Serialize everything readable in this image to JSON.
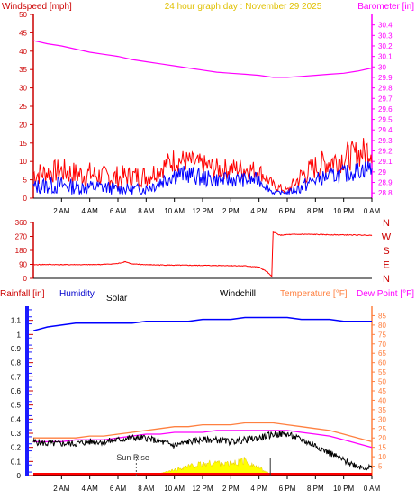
{
  "header": {
    "left_label": "Windspeed [mph]",
    "center_label": "24 hour graph day : November 29 2025",
    "right_label": "Barometer [in]"
  },
  "colors": {
    "wind": "#ff0000",
    "gust": "#0000ff",
    "barometer": "#ff00ff",
    "direction": "#ff0000",
    "rain": "#ff0000",
    "humidity": "#0000ff",
    "solar": "#ffff00",
    "windchill": "#000000",
    "temperature": "#ff8040",
    "dewpoint": "#ff00ff",
    "accent_red": "#cc0000",
    "title_yellow": "#e0c000"
  },
  "x_ticks": [
    "2 AM",
    "4 AM",
    "6 AM",
    "8 AM",
    "10 AM",
    "12 PM",
    "2 PM",
    "4 PM",
    "6 PM",
    "8 PM",
    "10 PM",
    "0 AM"
  ],
  "chart_data": [
    {
      "type": "line",
      "title": "24 hour graph day : November 29 2025",
      "ylabel": "Windspeed [mph]",
      "y2label": "Barometer [in]",
      "ylim": [
        0,
        50
      ],
      "y2lim": [
        28.75,
        30.5
      ],
      "yticks": [
        "0",
        "5",
        "10",
        "15",
        "20",
        "25",
        "30",
        "35",
        "40",
        "45",
        "50"
      ],
      "y2ticks": [
        "28.8",
        "28.9",
        "29",
        "29.1",
        "29.2",
        "29.3",
        "29.4",
        "29.5",
        "29.6",
        "29.7",
        "29.8",
        "29.9",
        "30",
        "30.1",
        "30.2",
        "30.3",
        "30.4"
      ],
      "x": [
        0,
        1,
        2,
        3,
        4,
        5,
        6,
        7,
        8,
        9,
        10,
        11,
        12,
        13,
        14,
        15,
        16,
        17,
        18,
        19,
        20,
        21,
        22,
        23,
        24
      ],
      "series": [
        {
          "role": "wind_hi",
          "values": [
            10,
            10,
            11,
            10,
            10,
            9,
            9,
            9,
            9,
            11,
            14,
            13,
            12,
            11,
            11,
            11,
            10,
            5,
            3,
            9,
            12,
            14,
            15,
            16,
            18
          ]
        },
        {
          "role": "wind_lo",
          "values": [
            3,
            4,
            4,
            3,
            3,
            3,
            2,
            3,
            3,
            5,
            7,
            7,
            6,
            5,
            5,
            5,
            5,
            2,
            1,
            3,
            5,
            6,
            7,
            8,
            9
          ]
        },
        {
          "role": "gust_hi",
          "values": [
            5,
            6,
            6,
            5,
            5,
            5,
            4,
            4,
            4,
            7,
            9,
            9,
            8,
            7,
            7,
            7,
            7,
            2,
            2,
            5,
            7,
            8,
            9,
            10,
            11
          ]
        },
        {
          "role": "gust_lo",
          "values": [
            1,
            1,
            1,
            1,
            1,
            1,
            1,
            1,
            1,
            2,
            4,
            4,
            3,
            3,
            3,
            3,
            3,
            1,
            1,
            1,
            3,
            4,
            4,
            5,
            6
          ]
        },
        {
          "role": "barometer",
          "values": [
            30.25,
            30.22,
            30.2,
            30.17,
            30.14,
            30.12,
            30.1,
            30.07,
            30.05,
            30.03,
            30.01,
            29.99,
            29.97,
            29.95,
            29.94,
            29.93,
            29.92,
            29.9,
            29.9,
            29.91,
            29.92,
            29.93,
            29.94,
            29.96,
            29.99
          ]
        }
      ]
    },
    {
      "type": "line",
      "ylim": [
        0,
        360
      ],
      "yticks": [
        "0",
        "90",
        "180",
        "270",
        "360"
      ],
      "compass": [
        "N",
        "W",
        "S",
        "E",
        "N"
      ],
      "x": [
        0,
        1,
        2,
        3,
        4,
        5,
        6,
        6.5,
        7,
        8,
        9,
        10,
        11,
        12,
        13,
        14,
        15,
        16,
        16.6,
        16.9,
        17,
        17.2,
        17.5,
        18,
        19,
        20,
        21,
        22,
        23,
        24
      ],
      "series": [
        {
          "name": "Wind Direction",
          "values": [
            88,
            89,
            88,
            88,
            88,
            90,
            95,
            108,
            92,
            88,
            86,
            85,
            84,
            83,
            83,
            82,
            80,
            72,
            40,
            10,
            300,
            290,
            278,
            282,
            284,
            283,
            281,
            280,
            279,
            278
          ]
        }
      ]
    },
    {
      "type": "line",
      "ylim": [
        0,
        1.2
      ],
      "y2lim": [
        0,
        90
      ],
      "yticks": [
        "0",
        "0.1",
        "0.2",
        "0.3",
        "0.4",
        "0.5",
        "0.6",
        "0.7",
        "0.8",
        "0.9",
        "1",
        "1.1"
      ],
      "y2ticks": [
        "5",
        "10",
        "15",
        "20",
        "25",
        "30",
        "35",
        "40",
        "45",
        "50",
        "55",
        "60",
        "65",
        "70",
        "75",
        "80",
        "85"
      ],
      "x": [
        0,
        1,
        2,
        3,
        4,
        5,
        6,
        7,
        8,
        9,
        10,
        11,
        12,
        13,
        14,
        15,
        16,
        17,
        18,
        19,
        20,
        21,
        22,
        23,
        24
      ],
      "labels": {
        "rain": "Rainfall [in]",
        "humidity": "Humidity",
        "solar": "Solar",
        "windchill": "Windchill",
        "temperature": "Temperature [°F]",
        "dewpoint": "Dew Point [°F]"
      },
      "annotations": [
        {
          "text": "Sun Rise",
          "x": 7.3
        }
      ],
      "series": [
        {
          "role": "humidity",
          "values": [
            77,
            79,
            80,
            81,
            81,
            81,
            81,
            81,
            82,
            82,
            82,
            82,
            83,
            83,
            83,
            84,
            84,
            84,
            84,
            83,
            83,
            83,
            82,
            82,
            82
          ]
        },
        {
          "role": "temperature",
          "values": [
            20,
            20,
            20,
            20,
            21,
            21,
            22,
            23,
            24,
            25,
            26,
            26,
            27,
            27,
            27,
            28,
            28,
            28,
            27,
            26,
            25,
            24,
            22,
            20,
            18
          ]
        },
        {
          "role": "dewpoint",
          "values": [
            18,
            18,
            18,
            19,
            19,
            19,
            20,
            21,
            22,
            22,
            23,
            23,
            23,
            24,
            24,
            24,
            24,
            24,
            24,
            23,
            22,
            21,
            19,
            17,
            15
          ]
        },
        {
          "role": "windchill",
          "values": [
            18,
            17,
            17,
            17,
            18,
            18,
            19,
            20,
            20,
            18,
            16,
            18,
            19,
            19,
            18,
            19,
            20,
            22,
            22,
            19,
            16,
            12,
            8,
            5,
            4
          ]
        },
        {
          "role": "solar",
          "values": [
            0,
            0,
            0,
            0,
            0,
            0,
            0,
            0,
            0,
            1,
            3,
            5,
            6,
            7,
            6,
            8,
            4,
            0,
            0,
            0,
            0,
            0,
            0,
            0,
            0
          ]
        },
        {
          "role": "rain",
          "values": [
            0,
            0,
            0,
            0,
            0,
            0,
            0,
            0,
            0,
            0,
            0,
            0,
            0,
            0,
            0,
            0,
            0,
            0,
            0,
            0,
            0,
            0,
            0,
            0,
            0
          ]
        }
      ]
    }
  ]
}
